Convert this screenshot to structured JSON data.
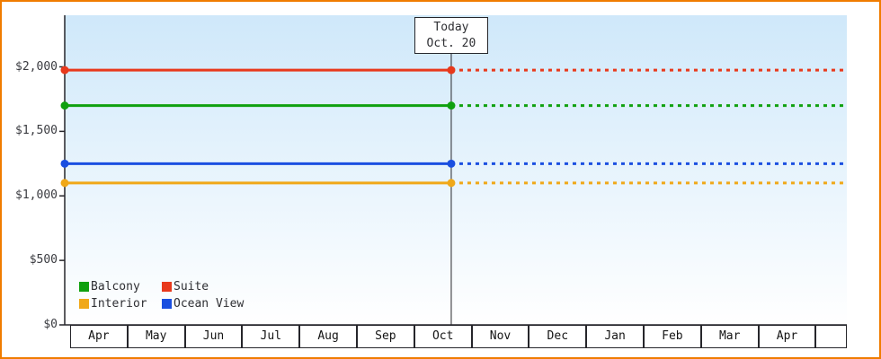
{
  "window": {
    "frame_border_color": "#f07c00",
    "background": "#ffffff"
  },
  "chart_data": {
    "type": "line",
    "title": "",
    "x_categories": [
      "Apr",
      "May",
      "Jun",
      "Jul",
      "Aug",
      "Sep",
      "Oct",
      "Nov",
      "Dec",
      "Jan",
      "Feb",
      "Mar",
      "Apr"
    ],
    "y_ticks": [
      {
        "label": "$0",
        "value": 0
      },
      {
        "label": "$500",
        "value": 500
      },
      {
        "label": "$1,000",
        "value": 1000
      },
      {
        "label": "$1,500",
        "value": 1500
      },
      {
        "label": "$2,000",
        "value": 2000
      }
    ],
    "ylim": [
      0,
      2400
    ],
    "series": [
      {
        "name": "Balcony",
        "value": 1700,
        "color": "#0fa00f"
      },
      {
        "name": "Suite",
        "value": 1975,
        "color": "#e8391c"
      },
      {
        "name": "Interior",
        "value": 1100,
        "color": "#f0a818"
      },
      {
        "name": "Ocean View",
        "value": 1250,
        "color": "#1a4fe0"
      }
    ],
    "today": {
      "label_line1": "Today",
      "label_line2": "Oct. 20",
      "month": "Oct",
      "day": 20,
      "days_in_month": 31
    },
    "style": {
      "plot_bg_top": "#cfe8fa",
      "plot_bg_bottom": "#ffffff",
      "axis_color": "#26262b",
      "today_line_color": "#26262b",
      "text_color": "#2e2f33",
      "solid_before_today": true,
      "dotted_after_today": true
    },
    "legend": {
      "position": "bottom-left",
      "columns": 2,
      "items": [
        "Balcony",
        "Suite",
        "Interior",
        "Ocean View"
      ]
    },
    "grid": false
  }
}
